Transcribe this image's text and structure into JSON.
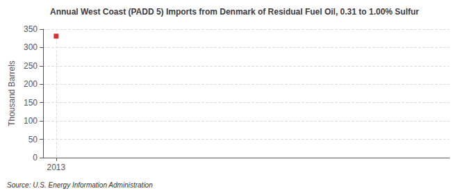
{
  "chart_data": {
    "type": "scatter",
    "title": "Annual West Coast (PADD 5) Imports from Denmark of Residual Fuel Oil, 0.31 to 1.00% Sulfur",
    "ylabel": "Thousand Barrels",
    "annotations": [
      "Source: U.S. Energy Information Administration"
    ],
    "x": [
      2013
    ],
    "values": [
      331
    ],
    "color": "#cc0000",
    "marker": "square",
    "xlim": [
      2012.7,
      2022.0
    ],
    "ylim": [
      0,
      350
    ],
    "xticks": [
      2013
    ],
    "yticks": [
      0,
      50,
      100,
      150,
      200,
      250,
      300,
      350
    ],
    "grid": true
  }
}
